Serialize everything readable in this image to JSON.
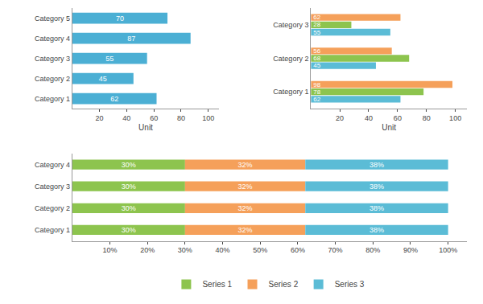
{
  "chart_data": [
    {
      "type": "bar",
      "orientation": "horizontal",
      "categories": [
        "Category 1",
        "Category 2",
        "Category 3",
        "Category 4",
        "Category 5"
      ],
      "values": [
        62,
        45,
        55,
        87,
        70
      ],
      "color": "#4bafd4",
      "xlabel": "Unit",
      "xlim": [
        0,
        108
      ],
      "xticks": [
        20,
        40,
        60,
        80,
        100
      ],
      "data_labels": true,
      "grid": false
    },
    {
      "type": "bar",
      "orientation": "horizontal",
      "categories": [
        "Category 1",
        "Category 2",
        "Category 3"
      ],
      "series": [
        {
          "color": "#f5a05a",
          "values": [
            98,
            56,
            62
          ]
        },
        {
          "color": "#8dc44e",
          "values": [
            78,
            68,
            28
          ]
        },
        {
          "color": "#5bbcd6",
          "values": [
            62,
            45,
            55
          ]
        }
      ],
      "xlabel": "Unit",
      "xlim": [
        0,
        108
      ],
      "xticks": [
        20,
        40,
        60,
        80,
        100
      ],
      "data_labels": true,
      "grid": false
    },
    {
      "type": "bar",
      "orientation": "horizontal",
      "stacked": true,
      "categories": [
        "Category 1",
        "Category 2",
        "Category 3",
        "Category 4"
      ],
      "series": [
        {
          "name": "Series 1",
          "color": "#8dc44e",
          "values": [
            30,
            30,
            30,
            30
          ],
          "value_labels": [
            "30%",
            "30%",
            "30%",
            "30%"
          ]
        },
        {
          "name": "Series 2",
          "color": "#f5a05a",
          "values": [
            32,
            32,
            32,
            32
          ],
          "value_labels": [
            "32%",
            "32%",
            "32%",
            "32%"
          ]
        },
        {
          "name": "Series 3",
          "color": "#5bbcd6",
          "values": [
            38,
            38,
            38,
            38
          ],
          "value_labels": [
            "38%",
            "38%",
            "38%",
            "38%"
          ]
        }
      ],
      "xlim": [
        0,
        105
      ],
      "xticks": [
        {
          "value": 10,
          "label": "10%"
        },
        {
          "value": 20,
          "label": "20%"
        },
        {
          "value": 30,
          "label": "30%"
        },
        {
          "value": 40,
          "label": "40%"
        },
        {
          "value": 50,
          "label": "50%"
        },
        {
          "value": 60,
          "label": "60%"
        },
        {
          "value": 70,
          "label": "70%"
        },
        {
          "value": 80,
          "label": "80%"
        },
        {
          "value": 90,
          "label": "90%"
        },
        {
          "value": 100,
          "label": "100%"
        }
      ],
      "data_labels": true,
      "legend": "bottom",
      "grid": false
    }
  ]
}
